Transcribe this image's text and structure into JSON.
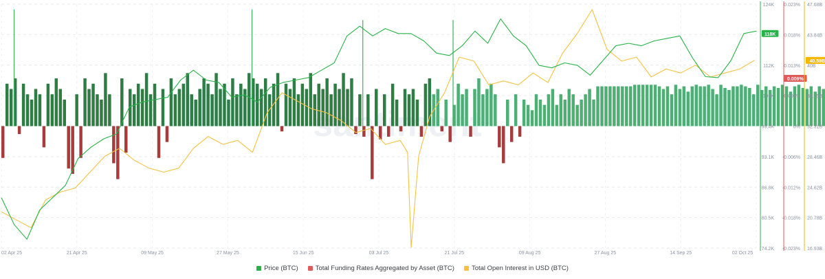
{
  "chart_data": {
    "type": "bar+line",
    "watermark": "santiment",
    "x_tick_labels": [
      "02 Apr 25",
      "21 Apr 25",
      "09 May 25",
      "27 May 25",
      "15 Jun 25",
      "03 Jul 25",
      "21 Jul 25",
      "09 Aug 25",
      "27 Aug 25",
      "14 Sep 25",
      "02 Oct 25"
    ],
    "axes": {
      "price": {
        "unit": "USD",
        "ticks": [
          "124K",
          "118K",
          "112K",
          "105K",
          "99.4K",
          "93.1K",
          "86.8K",
          "80.5K",
          "74.2K"
        ],
        "range": [
          74.2,
          124
        ],
        "current_label": "118K",
        "color": "#26b347"
      },
      "funding": {
        "ticks": [
          "0.023%",
          "0.018%",
          "0.013%",
          "0.008%",
          "0%",
          "-0.006%",
          "-0.012%",
          "-0.018%",
          "-0.023%"
        ],
        "range": [
          -0.023,
          0.023
        ],
        "current_label": "0.009%",
        "color": "#e05a5a"
      },
      "open_interest": {
        "ticks": [
          "47.68B",
          "43.84B",
          "40B",
          "36.15B",
          "32.31B",
          "28.46B",
          "24.62B",
          "20.78B",
          "16.93B"
        ],
        "range": [
          16.93,
          47.68
        ],
        "current_label": "40.59B",
        "color": "#f5b700"
      }
    },
    "series": [
      {
        "name": "Price (BTC)",
        "color": "#26b347",
        "unit": "K USD",
        "points": [
          [
            0,
            84.5
          ],
          [
            4,
            79
          ],
          [
            8,
            76
          ],
          [
            12,
            82
          ],
          [
            16,
            84.5
          ],
          [
            20,
            87
          ],
          [
            24,
            92.5
          ],
          [
            28,
            94.8
          ],
          [
            32,
            96.5
          ],
          [
            36,
            97.5
          ],
          [
            40,
            103
          ],
          [
            44,
            104
          ],
          [
            48,
            104.5
          ],
          [
            52,
            105
          ],
          [
            56,
            108.5
          ],
          [
            60,
            110.5
          ],
          [
            64,
            108.5
          ],
          [
            68,
            108
          ],
          [
            72,
            105
          ],
          [
            76,
            105.5
          ],
          [
            80,
            104
          ],
          [
            84,
            107
          ],
          [
            88,
            108
          ],
          [
            92,
            108.5
          ],
          [
            96,
            109
          ],
          [
            100,
            110.5
          ],
          [
            104,
            112
          ],
          [
            108,
            117.5
          ],
          [
            112,
            119.5
          ],
          [
            116,
            117.5
          ],
          [
            120,
            119
          ],
          [
            124,
            118
          ],
          [
            128,
            118
          ],
          [
            132,
            116.5
          ],
          [
            136,
            114
          ],
          [
            140,
            113.5
          ],
          [
            144,
            115.5
          ],
          [
            148,
            118.5
          ],
          [
            152,
            116
          ],
          [
            156,
            121
          ],
          [
            160,
            117.5
          ],
          [
            164,
            115.5
          ],
          [
            168,
            111.5
          ],
          [
            172,
            111
          ],
          [
            176,
            112
          ],
          [
            180,
            111.5
          ],
          [
            184,
            109.5
          ],
          [
            188,
            112.5
          ],
          [
            192,
            115.5
          ],
          [
            196,
            116
          ],
          [
            200,
            115.5
          ],
          [
            204,
            116.5
          ],
          [
            208,
            117
          ],
          [
            212,
            117.5
          ],
          [
            216,
            113
          ],
          [
            220,
            109.2
          ],
          [
            224,
            109
          ],
          [
            228,
            112.5
          ],
          [
            232,
            118
          ],
          [
            236,
            118.5
          ]
        ]
      },
      {
        "name": "Total Funding Rates Aggregated by Asset (BTC)",
        "color_positive": "#2e7d45",
        "color_positive_late": "#4caf73",
        "color_negative": "#a83c3c",
        "unit": "%",
        "daily_values": [
          -0.006,
          0.008,
          0.007,
          0.009,
          -0.0015,
          0.008,
          0.006,
          0.005,
          0.007,
          0.006,
          -0.004,
          0.008,
          0.006,
          0.009,
          0.007,
          0.005,
          -0.008,
          -0.009,
          0.006,
          -0.006,
          0.009,
          0.007,
          0.008,
          0.006,
          0.005,
          0.01,
          0.006,
          -0.007,
          -0.01,
          0.009,
          -0.005,
          0.007,
          0.006,
          0.008,
          0.007,
          0.01,
          0.006,
          0.008,
          -0.006,
          0.007,
          -0.003,
          0.009,
          0.006,
          0.007,
          0.008,
          0.01,
          0.006,
          0.005,
          0.007,
          0.009,
          0.008,
          0.006,
          0.01,
          0.007,
          0.008,
          0.005,
          0.009,
          0.006,
          0.008,
          0.007,
          0.01,
          0.009,
          0.008,
          0.007,
          0.009,
          0.006,
          0.008,
          0.01,
          -0.001,
          0.008,
          0.007,
          0.009,
          0.006,
          0.008,
          0.007,
          0.01,
          0.006,
          0.008,
          0.007,
          0.009,
          0.006,
          0.008,
          0.007,
          0.01,
          0.007,
          0.009,
          -0.0015,
          0.006,
          -0.002,
          0.006,
          -0.01,
          0.007,
          -0.0025,
          0.006,
          -0.002,
          0.008,
          0.005,
          -0.001,
          0.007,
          0.006,
          0.007,
          0.005,
          -0.002,
          0.008,
          0.009,
          0.006,
          0.007,
          -0.001,
          0.005,
          -0.003,
          0.004,
          0.008,
          0.006,
          0.007,
          -0.002,
          0.007,
          0.009,
          0.006,
          0.007,
          0.008,
          0.006,
          -0.004,
          -0.007,
          0.005,
          -0.003,
          0.006,
          -0.002,
          0.005,
          0.004,
          0.003,
          0.006,
          0.005,
          0.004,
          0.006,
          0.007,
          0.004,
          0.006,
          0.005,
          0.007,
          0.006,
          0.004,
          0.005,
          0.006,
          0.007,
          0.005,
          0.0075,
          0.0075,
          0.0075,
          0.0075,
          0.0075,
          0.0075,
          0.0075,
          0.0075,
          0.0075,
          0.0078,
          0.0078,
          0.0078,
          0.0078,
          0.0078,
          0.0078,
          0.0075,
          0.007,
          0.0075,
          0.006,
          0.0078,
          0.007,
          0.0075,
          0.0065,
          0.0075,
          0.0078,
          0.0075,
          0.0075,
          0.0078,
          0.007,
          0.006,
          0.0078,
          0.0072,
          0.0068,
          0.0075,
          0.0075,
          0.0078,
          0.0075,
          0.0072,
          0.006,
          0.0078,
          0.0068,
          0.0075,
          0.0068,
          0.0075,
          0.0072,
          0.0078,
          0.0075,
          0.0065,
          0.0075,
          0.0078,
          0.0072,
          0.007,
          0.0075,
          0.0065,
          0.0075,
          0.007,
          0.0068,
          0.007,
          0.0065,
          0.0068,
          0.007,
          0.0062,
          0.0068,
          0.007,
          0.0065,
          0.0075,
          0.0068
        ]
      },
      {
        "name": "Total Open Interest in USD (BTC)",
        "color": "#f5c242",
        "unit": "B USD",
        "points": [
          [
            0,
            21.5
          ],
          [
            4,
            20.5
          ],
          [
            8,
            19.5
          ],
          [
            12,
            23
          ],
          [
            16,
            24
          ],
          [
            20,
            24.5
          ],
          [
            24,
            26.5
          ],
          [
            28,
            28.5
          ],
          [
            32,
            29.5
          ],
          [
            36,
            28
          ],
          [
            40,
            27
          ],
          [
            44,
            26.5
          ],
          [
            48,
            27
          ],
          [
            52,
            29.5
          ],
          [
            56,
            31
          ],
          [
            60,
            30
          ],
          [
            64,
            30.5
          ],
          [
            68,
            29
          ],
          [
            72,
            34
          ],
          [
            76,
            36.5
          ],
          [
            80,
            35.5
          ],
          [
            84,
            34.5
          ],
          [
            88,
            34
          ],
          [
            92,
            33
          ],
          [
            96,
            31.5
          ],
          [
            100,
            32
          ],
          [
            104,
            30
          ],
          [
            108,
            30.5
          ],
          [
            110,
            29
          ],
          [
            111,
            17
          ],
          [
            113,
            28.5
          ],
          [
            116,
            33.5
          ],
          [
            120,
            36.5
          ],
          [
            124,
            41
          ],
          [
            128,
            40.5
          ],
          [
            132,
            37.5
          ],
          [
            136,
            38
          ],
          [
            140,
            37.5
          ],
          [
            144,
            39
          ],
          [
            148,
            37.8
          ],
          [
            152,
            41.5
          ],
          [
            156,
            44
          ],
          [
            160,
            47
          ],
          [
            164,
            42
          ],
          [
            168,
            40.5
          ],
          [
            172,
            41
          ],
          [
            176,
            38.5
          ],
          [
            180,
            39.5
          ],
          [
            184,
            39
          ],
          [
            188,
            40
          ],
          [
            192,
            38.5
          ],
          [
            196,
            39
          ],
          [
            200,
            39.5
          ],
          [
            204,
            40.6
          ]
        ]
      }
    ],
    "legend": [
      "Price (BTC)",
      "Total Funding Rates Aggregated by Asset (BTC)",
      "Total Open Interest in USD (BTC)"
    ],
    "legend_position": "bottom",
    "grid": true
  }
}
